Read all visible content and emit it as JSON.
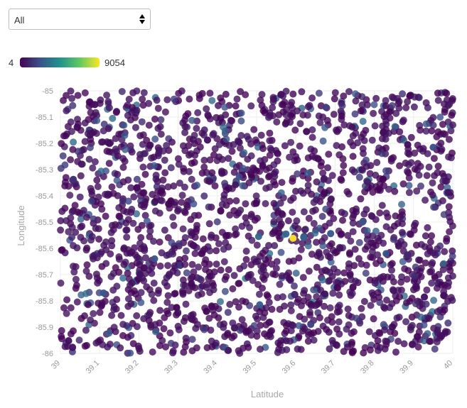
{
  "filter": {
    "selected": "All"
  },
  "legend": {
    "min_label": "4",
    "max_label": "9054",
    "colorscale": "viridis",
    "colors": [
      "#440154",
      "#3b528b",
      "#21918c",
      "#5ec962",
      "#fde725"
    ]
  },
  "chart_data": {
    "type": "scatter",
    "title": "",
    "xlabel": "Latitude",
    "ylabel": "Longitude",
    "xlim": [
      39,
      40
    ],
    "ylim": [
      -86,
      -85
    ],
    "x_ticks": [
      "39",
      "39.1",
      "39.2",
      "39.3",
      "39.4",
      "39.5",
      "39.6",
      "39.7",
      "39.8",
      "39.9",
      "40"
    ],
    "y_ticks": [
      "-85",
      "-85.1",
      "-85.2",
      "-85.3",
      "-85.4",
      "-85.5",
      "-85.6",
      "-85.7",
      "-85.8",
      "-85.9",
      "-86"
    ],
    "grid": true,
    "marker_opacity": 0.8,
    "color_range": [
      4,
      9054
    ],
    "points_note": "approximately 2000 points distributed uniformly across the axis ranges; most have low color values (dark purple), a minority mid-range (teal), and one high-value point (yellow)",
    "highlighted_points": [
      {
        "x": 39.593,
        "y": -85.562,
        "value": 9054
      },
      {
        "x": 39.505,
        "y": -85.555,
        "value": 3000
      },
      {
        "x": 39.575,
        "y": -85.545,
        "value": 3000
      },
      {
        "x": 39.62,
        "y": -85.558,
        "value": 2800
      },
      {
        "x": 39.508,
        "y": -85.815,
        "value": 2600
      },
      {
        "x": 39.11,
        "y": -85.77,
        "value": 2500
      },
      {
        "x": 39.77,
        "y": -85.5,
        "value": 2400
      },
      {
        "x": 39.24,
        "y": -85.64,
        "value": 2300
      },
      {
        "x": 39.83,
        "y": -85.62,
        "value": 2200
      },
      {
        "x": 39.95,
        "y": -85.215,
        "value": 2100
      }
    ]
  }
}
